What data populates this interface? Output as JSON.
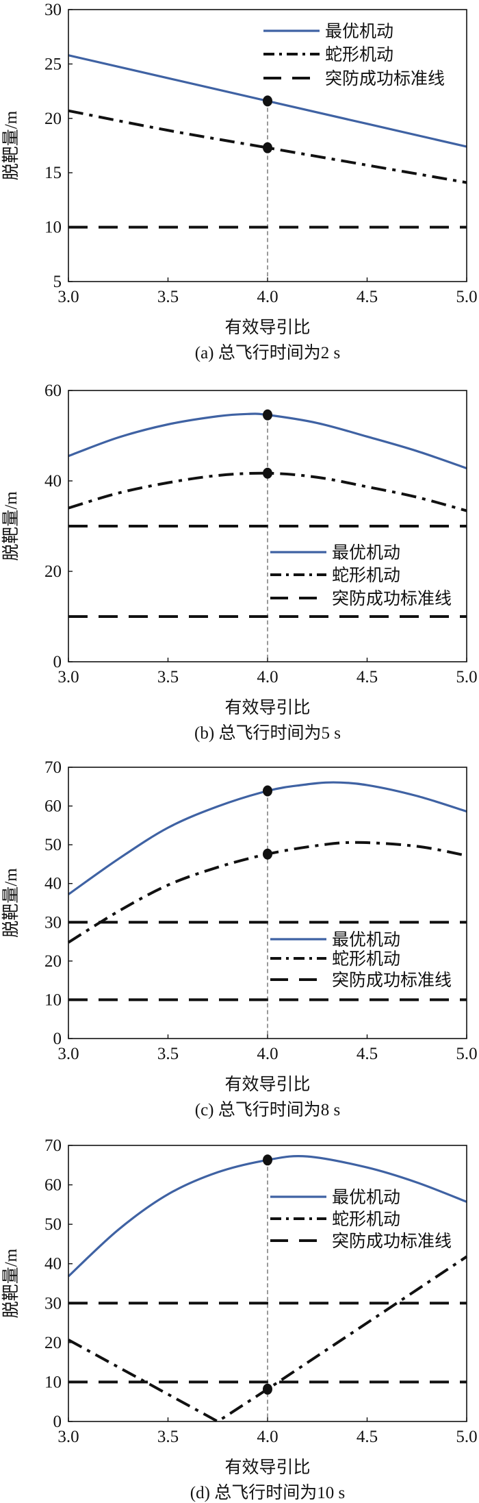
{
  "colors": {
    "optimal": "#3f62a3",
    "snake": "#111111",
    "threshold": "#111111",
    "marker": "#111111"
  },
  "chart_data": [
    {
      "type": "line",
      "caption": "(a) 总飞行时间为2 s",
      "xlabel": "有效导引比",
      "ylabel": "脱靶量/m",
      "xlim": [
        3.0,
        5.0
      ],
      "ylim": [
        5,
        30
      ],
      "xticks": [
        "3.0",
        "3.5",
        "4.0",
        "4.5",
        "5.0"
      ],
      "yticks": [
        "5",
        "10",
        "15",
        "20",
        "25",
        "30"
      ],
      "legend_placement": "top-right",
      "series": [
        {
          "name": "最优机动",
          "style": "solid",
          "interp": "smooth",
          "x": [
            3.0,
            3.5,
            4.0,
            4.5,
            5.0
          ],
          "y": [
            25.8,
            23.7,
            21.6,
            19.5,
            17.4
          ]
        },
        {
          "name": "蛇形机动",
          "style": "dashdot",
          "interp": "smooth",
          "x": [
            3.0,
            3.5,
            4.0,
            4.5,
            5.0
          ],
          "y": [
            20.7,
            18.9,
            17.3,
            15.7,
            14.1
          ]
        },
        {
          "name": "突防成功标准线",
          "style": "dashed",
          "values": [
            10
          ]
        }
      ],
      "markers": {
        "x": 4.0,
        "y": [
          21.6,
          17.3
        ]
      }
    },
    {
      "type": "line",
      "caption": "(b) 总飞行时间为5 s",
      "xlabel": "有效导引比",
      "ylabel": "脱靶量/m",
      "xlim": [
        3.0,
        5.0
      ],
      "ylim": [
        0,
        60
      ],
      "xticks": [
        "3.0",
        "3.5",
        "4.0",
        "4.5",
        "5.0"
      ],
      "yticks": [
        "0",
        "20",
        "40",
        "60"
      ],
      "legend_placement": "center-right",
      "series": [
        {
          "name": "最优机动",
          "style": "solid",
          "interp": "smooth",
          "x": [
            3.0,
            3.25,
            3.5,
            3.75,
            3.9,
            4.0,
            4.25,
            4.5,
            4.75,
            5.0
          ],
          "y": [
            45.5,
            49.6,
            52.5,
            54.3,
            54.8,
            54.6,
            52.8,
            49.8,
            46.6,
            42.8
          ]
        },
        {
          "name": "蛇形机动",
          "style": "dashdot",
          "interp": "smooth",
          "x": [
            3.0,
            3.25,
            3.5,
            3.75,
            4.0,
            4.25,
            4.5,
            4.75,
            5.0
          ],
          "y": [
            34.0,
            37.3,
            39.6,
            41.2,
            41.7,
            40.8,
            38.7,
            36.4,
            33.4
          ]
        },
        {
          "name": "突防成功标准线",
          "style": "dashed",
          "values": [
            10,
            30
          ]
        }
      ],
      "markers": {
        "x": 4.0,
        "y": [
          54.6,
          41.7
        ]
      }
    },
    {
      "type": "line",
      "caption": "(c) 总飞行时间为8 s",
      "xlabel": "有效导引比",
      "ylabel": "脱靶量/m",
      "xlim": [
        3.0,
        5.0
      ],
      "ylim": [
        0,
        70
      ],
      "xticks": [
        "3.0",
        "3.5",
        "4.0",
        "4.5",
        "5.0"
      ],
      "yticks": [
        "0",
        "10",
        "20",
        "30",
        "40",
        "50",
        "60",
        "70"
      ],
      "legend_placement": "center-right",
      "series": [
        {
          "name": "最优机动",
          "style": "solid",
          "interp": "smooth",
          "x": [
            3.0,
            3.25,
            3.5,
            3.75,
            4.0,
            4.17,
            4.33,
            4.5,
            4.75,
            5.0
          ],
          "y": [
            37.2,
            46.3,
            54.4,
            59.9,
            63.9,
            65.4,
            66.1,
            65.4,
            62.6,
            58.6
          ]
        },
        {
          "name": "蛇形机动",
          "style": "dashdot",
          "interp": "smooth",
          "x": [
            3.0,
            3.25,
            3.5,
            3.75,
            4.0,
            4.25,
            4.45,
            4.75,
            5.0
          ],
          "y": [
            24.8,
            32.8,
            39.6,
            44.2,
            47.6,
            49.8,
            50.6,
            49.6,
            47.2
          ]
        },
        {
          "name": "突防成功标准线",
          "style": "dashed",
          "values": [
            10,
            30
          ]
        }
      ],
      "markers": {
        "x": 4.0,
        "y": [
          63.9,
          47.6
        ]
      }
    },
    {
      "type": "line",
      "caption": "(d) 总飞行时间为10 s",
      "xlabel": "有效导引比",
      "ylabel": "脱靶量/m",
      "xlim": [
        3.0,
        5.0
      ],
      "ylim": [
        0,
        70
      ],
      "xticks": [
        "3.0",
        "3.5",
        "4.0",
        "4.5",
        "5.0"
      ],
      "yticks": [
        "0",
        "10",
        "20",
        "30",
        "40",
        "50",
        "60",
        "70"
      ],
      "legend_placement": "center-right",
      "series": [
        {
          "name": "最优机动",
          "style": "solid",
          "interp": "smooth",
          "x": [
            3.0,
            3.25,
            3.5,
            3.75,
            4.0,
            4.2,
            4.5,
            4.75,
            5.0
          ],
          "y": [
            36.8,
            48.6,
            57.6,
            63.2,
            66.3,
            67.2,
            64.4,
            60.6,
            55.7
          ]
        },
        {
          "name": "蛇形机动",
          "style": "dashdot",
          "interp": "linear",
          "x": [
            3.0,
            3.75,
            4.0,
            5.0
          ],
          "y": [
            20.7,
            0.0,
            8.2,
            41.8
          ]
        },
        {
          "name": "突防成功标准线",
          "style": "dashed",
          "values": [
            10,
            30
          ]
        }
      ],
      "markers": {
        "x": 4.0,
        "y": [
          66.3,
          8.2
        ]
      }
    }
  ]
}
